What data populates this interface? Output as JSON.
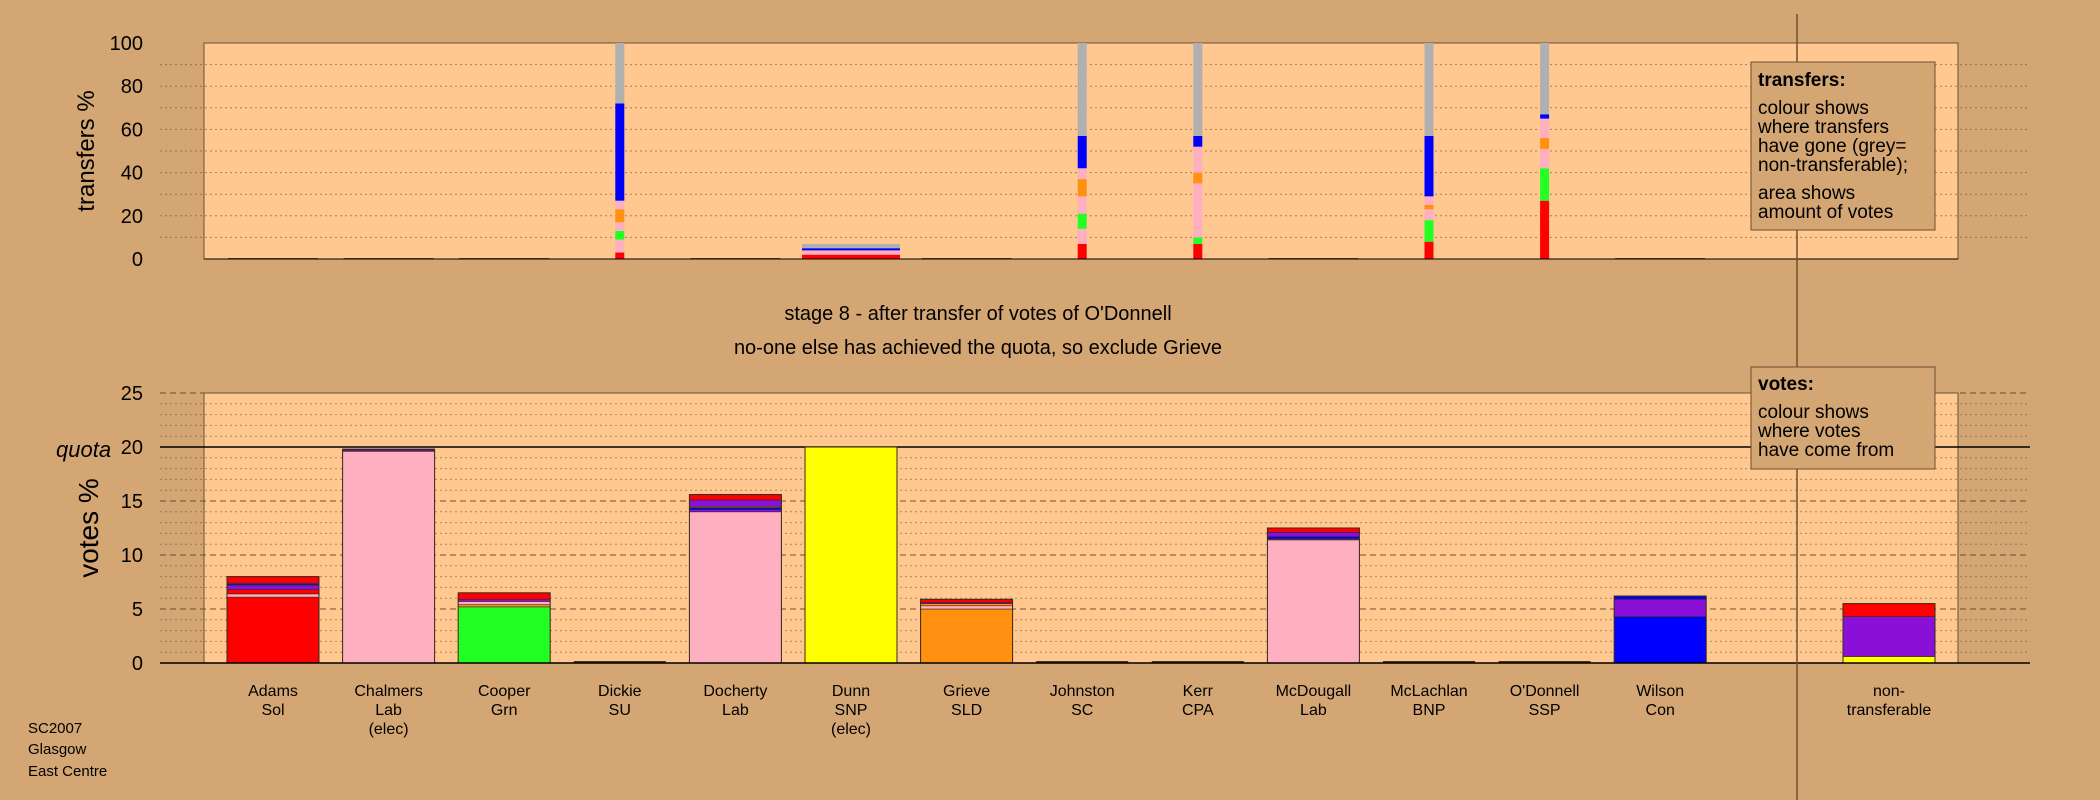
{
  "chart_data": [
    {
      "type": "bar",
      "ylabel": "transfers %",
      "ylim": [
        0,
        100
      ],
      "yticks": [
        0,
        20,
        40,
        60,
        80,
        100
      ],
      "note_title": "transfers:",
      "note_lines_1": [
        "colour shows",
        "where transfers",
        "have gone (grey=",
        "non-transferable);"
      ],
      "note_lines_2": [
        "area shows",
        "amount of votes"
      ],
      "series": [
        {
          "candidate": "Dickie",
          "segments": [
            {
              "color": "#ff0000",
              "value": 3
            },
            {
              "color": "#ffb0c0",
              "value": 6
            },
            {
              "color": "#22ff22",
              "value": 4
            },
            {
              "color": "#ffb0c0",
              "value": 4
            },
            {
              "color": "#ff9010",
              "value": 6
            },
            {
              "color": "#ffb0c0",
              "value": 4
            },
            {
              "color": "#0000ff",
              "value": 45
            },
            {
              "color": "#b0b0b0",
              "value": 28
            }
          ]
        },
        {
          "candidate": "Dunn",
          "segments": [
            {
              "color": "#ff0000",
              "value": 2
            },
            {
              "color": "#ffb0c0",
              "value": 2
            },
            {
              "color": "#0000ff",
              "value": 1
            },
            {
              "color": "#b0b0b0",
              "value": 2
            }
          ]
        },
        {
          "candidate": "Johnston",
          "segments": [
            {
              "color": "#ff0000",
              "value": 7
            },
            {
              "color": "#ffb0c0",
              "value": 7
            },
            {
              "color": "#22ff22",
              "value": 7
            },
            {
              "color": "#ffb0c0",
              "value": 8
            },
            {
              "color": "#ff9010",
              "value": 8
            },
            {
              "color": "#ffb0c0",
              "value": 5
            },
            {
              "color": "#0000ff",
              "value": 15
            },
            {
              "color": "#b0b0b0",
              "value": 43
            }
          ]
        },
        {
          "candidate": "Kerr",
          "segments": [
            {
              "color": "#ff0000",
              "value": 7
            },
            {
              "color": "#22ff22",
              "value": 3
            },
            {
              "color": "#ffb0c0",
              "value": 25
            },
            {
              "color": "#ff9010",
              "value": 5
            },
            {
              "color": "#ffb0c0",
              "value": 12
            },
            {
              "color": "#0000ff",
              "value": 5
            },
            {
              "color": "#b0b0b0",
              "value": 43
            }
          ]
        },
        {
          "candidate": "McLachlan",
          "segments": [
            {
              "color": "#ff0000",
              "value": 8
            },
            {
              "color": "#22ff22",
              "value": 10
            },
            {
              "color": "#ffb0c0",
              "value": 5
            },
            {
              "color": "#ff9010",
              "value": 2
            },
            {
              "color": "#ffb0c0",
              "value": 4
            },
            {
              "color": "#0000ff",
              "value": 28
            },
            {
              "color": "#b0b0b0",
              "value": 43
            }
          ]
        },
        {
          "candidate": "O'Donnell",
          "segments": [
            {
              "color": "#ff0000",
              "value": 27
            },
            {
              "color": "#22ff22",
              "value": 15
            },
            {
              "color": "#ffb0c0",
              "value": 9
            },
            {
              "color": "#ff9010",
              "value": 5
            },
            {
              "color": "#ffb0c0",
              "value": 9
            },
            {
              "color": "#0000ff",
              "value": 2
            },
            {
              "color": "#b0b0b0",
              "value": 33
            }
          ]
        }
      ]
    },
    {
      "type": "bar",
      "ylabel": "votes %",
      "ylim": [
        0,
        25
      ],
      "yticks": [
        0,
        5,
        10,
        15,
        20,
        25
      ],
      "quota": 20,
      "quota_label": "quota",
      "note_title": "votes:",
      "note_lines": [
        "colour shows",
        "where votes",
        "have come from"
      ],
      "caption_1": "stage 8 - after transfer of votes of O'Donnell",
      "caption_2": "no-one else has achieved the quota, so exclude Grieve",
      "categories": [
        {
          "lines": [
            "Adams",
            "Sol"
          ]
        },
        {
          "lines": [
            "Chalmers",
            "Lab",
            "(elec)"
          ]
        },
        {
          "lines": [
            "Cooper",
            "Grn"
          ]
        },
        {
          "lines": [
            "Dickie",
            "SU"
          ]
        },
        {
          "lines": [
            "Docherty",
            "Lab"
          ]
        },
        {
          "lines": [
            "Dunn",
            "SNP",
            "(elec)"
          ]
        },
        {
          "lines": [
            "Grieve",
            "SLD"
          ]
        },
        {
          "lines": [
            "Johnston",
            "SC"
          ]
        },
        {
          "lines": [
            "Kerr",
            "CPA"
          ]
        },
        {
          "lines": [
            "McDougall",
            "Lab"
          ]
        },
        {
          "lines": [
            "McLachlan",
            "BNP"
          ]
        },
        {
          "lines": [
            "O'Donnell",
            "SSP"
          ]
        },
        {
          "lines": [
            "Wilson",
            "Con"
          ]
        },
        {
          "lines": [
            "non-",
            "transferable"
          ]
        }
      ],
      "stacks": [
        [
          {
            "color": "#ff0000",
            "value": 6.1
          },
          {
            "color": "#ffb0c0",
            "value": 0.3
          },
          {
            "color": "#ff0000",
            "value": 0.4
          },
          {
            "color": "#8a10d8",
            "value": 0.4
          },
          {
            "color": "#0000ff",
            "value": 0.1
          },
          {
            "color": "#8a10d8",
            "value": 0.1
          },
          {
            "color": "#ff0000",
            "value": 0.6
          }
        ],
        [
          {
            "color": "#ffb0c0",
            "value": 19.6
          },
          {
            "color": "#8a10d8",
            "value": 0.1
          },
          {
            "color": "#0000ff",
            "value": 0.1
          }
        ],
        [
          {
            "color": "#22ff22",
            "value": 5.2
          },
          {
            "color": "#ff9010",
            "value": 0.2
          },
          {
            "color": "#ffb0c0",
            "value": 0.3
          },
          {
            "color": "#8a10d8",
            "value": 0.2
          },
          {
            "color": "#ff0000",
            "value": 0.6
          }
        ],
        [],
        [
          {
            "color": "#ffb0c0",
            "value": 14.0
          },
          {
            "color": "#8a10d8",
            "value": 0.2
          },
          {
            "color": "#0000ff",
            "value": 0.2
          },
          {
            "color": "#ffb0c0",
            "value": 0.1
          },
          {
            "color": "#8a10d8",
            "value": 0.6
          },
          {
            "color": "#ff0000",
            "value": 0.5
          }
        ],
        [
          {
            "color": "#ffff00",
            "value": 20.0
          }
        ],
        [
          {
            "color": "#ff9010",
            "value": 5.0
          },
          {
            "color": "#ffb0c0",
            "value": 0.3
          },
          {
            "color": "#ff9010",
            "value": 0.2
          },
          {
            "color": "#8a10d8",
            "value": 0.1
          },
          {
            "color": "#ff0000",
            "value": 0.3
          }
        ],
        [],
        [],
        [
          {
            "color": "#ffb0c0",
            "value": 11.4
          },
          {
            "color": "#8a10d8",
            "value": 0.1
          },
          {
            "color": "#0000ff",
            "value": 0.2
          },
          {
            "color": "#8a10d8",
            "value": 0.4
          },
          {
            "color": "#ff0000",
            "value": 0.4
          }
        ],
        [],
        [],
        [
          {
            "color": "#0000ff",
            "value": 4.3
          },
          {
            "color": "#8a10d8",
            "value": 1.6
          },
          {
            "color": "#0000ff",
            "value": 0.3
          }
        ],
        [
          {
            "color": "#ffff00",
            "value": 0.6
          },
          {
            "color": "#8a10d8",
            "value": 3.7
          },
          {
            "color": "#ff0000",
            "value": 1.2
          }
        ]
      ]
    }
  ],
  "footer": {
    "line_1": "SC2007",
    "line_2": "Glasgow",
    "line_3": "East Centre"
  },
  "colors": {
    "background": "#d3a673",
    "plot_area": "#ffc890",
    "grey": "#b0b0b0",
    "pink": "#ffb0c0",
    "blue": "#0000ff",
    "red": "#ff0000",
    "green": "#22ff22",
    "orange": "#ff9010",
    "yellow": "#ffff00",
    "purple": "#8a10d8"
  }
}
